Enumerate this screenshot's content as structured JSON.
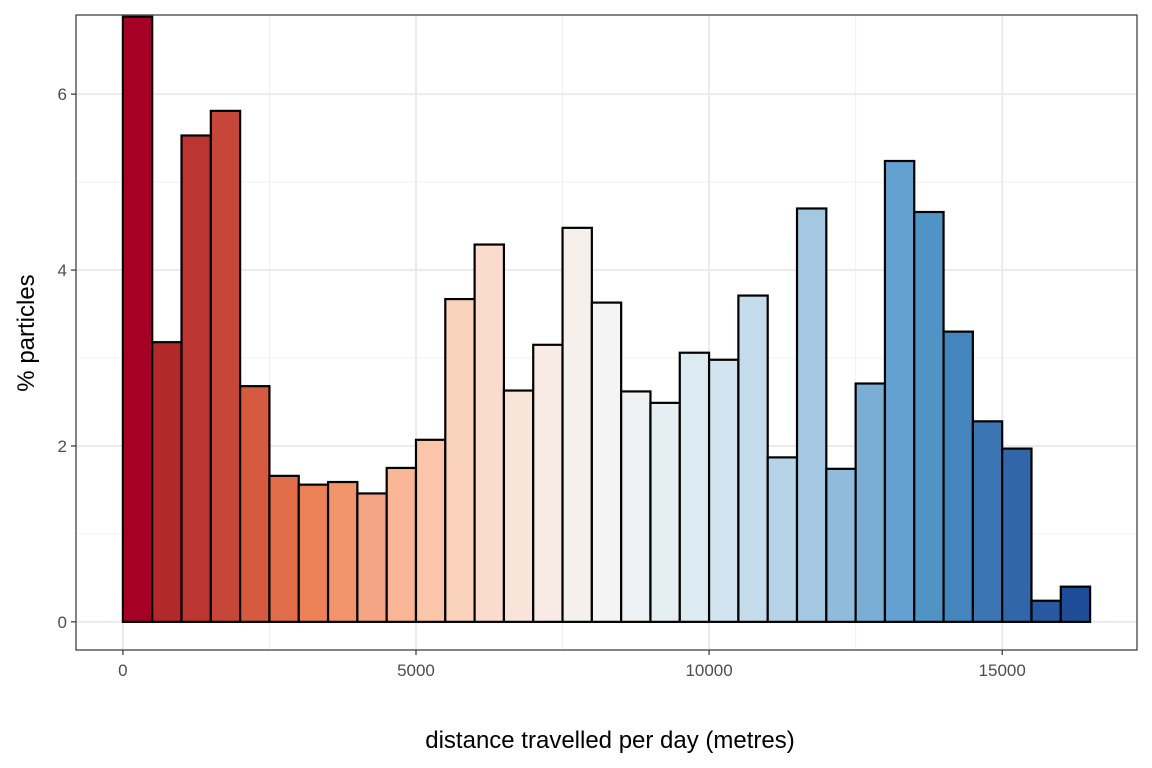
{
  "chart_data": {
    "type": "bar",
    "xlabel": "distance travelled per day (metres)",
    "ylabel": "% particles",
    "xlim": [
      -800,
      17300
    ],
    "ylim": [
      -0.32,
      6.9
    ],
    "x_ticks": [
      {
        "value": 0,
        "label": "0"
      },
      {
        "value": 5000,
        "label": "5000"
      },
      {
        "value": 10000,
        "label": "10000"
      },
      {
        "value": 15000,
        "label": "15000"
      }
    ],
    "y_ticks": [
      {
        "value": 0,
        "label": "0"
      },
      {
        "value": 2,
        "label": "2"
      },
      {
        "value": 4,
        "label": "4"
      },
      {
        "value": 6,
        "label": "6"
      }
    ],
    "grid": true,
    "bin_width": 500,
    "bins": [
      {
        "x": 250,
        "value": 6.88,
        "color": "#a50026"
      },
      {
        "x": 750,
        "value": 3.18,
        "color": "#b2282b"
      },
      {
        "x": 1250,
        "value": 5.53,
        "color": "#bb3531"
      },
      {
        "x": 1750,
        "value": 5.81,
        "color": "#c6463a"
      },
      {
        "x": 2250,
        "value": 2.68,
        "color": "#d65a40"
      },
      {
        "x": 2750,
        "value": 1.66,
        "color": "#e26d4a"
      },
      {
        "x": 3250,
        "value": 1.56,
        "color": "#ec8158"
      },
      {
        "x": 3750,
        "value": 1.59,
        "color": "#f1946b"
      },
      {
        "x": 4250,
        "value": 1.46,
        "color": "#f5a583"
      },
      {
        "x": 4750,
        "value": 1.75,
        "color": "#f8b697"
      },
      {
        "x": 5250,
        "value": 2.07,
        "color": "#fac5aa"
      },
      {
        "x": 5750,
        "value": 3.67,
        "color": "#fbd2bc"
      },
      {
        "x": 6250,
        "value": 4.29,
        "color": "#fbdccc"
      },
      {
        "x": 6750,
        "value": 2.63,
        "color": "#f9e4da"
      },
      {
        "x": 7250,
        "value": 3.15,
        "color": "#f8ebe5"
      },
      {
        "x": 7750,
        "value": 4.48,
        "color": "#f6f0ec"
      },
      {
        "x": 8250,
        "value": 3.63,
        "color": "#f4f4f4"
      },
      {
        "x": 8750,
        "value": 2.62,
        "color": "#edf1f3"
      },
      {
        "x": 9250,
        "value": 2.49,
        "color": "#e5eef3"
      },
      {
        "x": 9750,
        "value": 3.06,
        "color": "#dceaf2"
      },
      {
        "x": 10250,
        "value": 2.98,
        "color": "#d1e4ef"
      },
      {
        "x": 10750,
        "value": 3.71,
        "color": "#c5dcec"
      },
      {
        "x": 11250,
        "value": 1.87,
        "color": "#b6d3e7"
      },
      {
        "x": 11750,
        "value": 4.7,
        "color": "#a4c8e1"
      },
      {
        "x": 12250,
        "value": 1.74,
        "color": "#90bbdb"
      },
      {
        "x": 12750,
        "value": 2.71,
        "color": "#7aaed5"
      },
      {
        "x": 13250,
        "value": 5.24,
        "color": "#64a0cf"
      },
      {
        "x": 13750,
        "value": 4.66,
        "color": "#5094c6"
      },
      {
        "x": 14250,
        "value": 3.3,
        "color": "#4585bd"
      },
      {
        "x": 14750,
        "value": 2.28,
        "color": "#3b76b2"
      },
      {
        "x": 15250,
        "value": 1.97,
        "color": "#3167a8"
      },
      {
        "x": 15750,
        "value": 0.24,
        "color": "#28589f"
      },
      {
        "x": 16250,
        "value": 0.4,
        "color": "#1f4c97"
      }
    ]
  }
}
